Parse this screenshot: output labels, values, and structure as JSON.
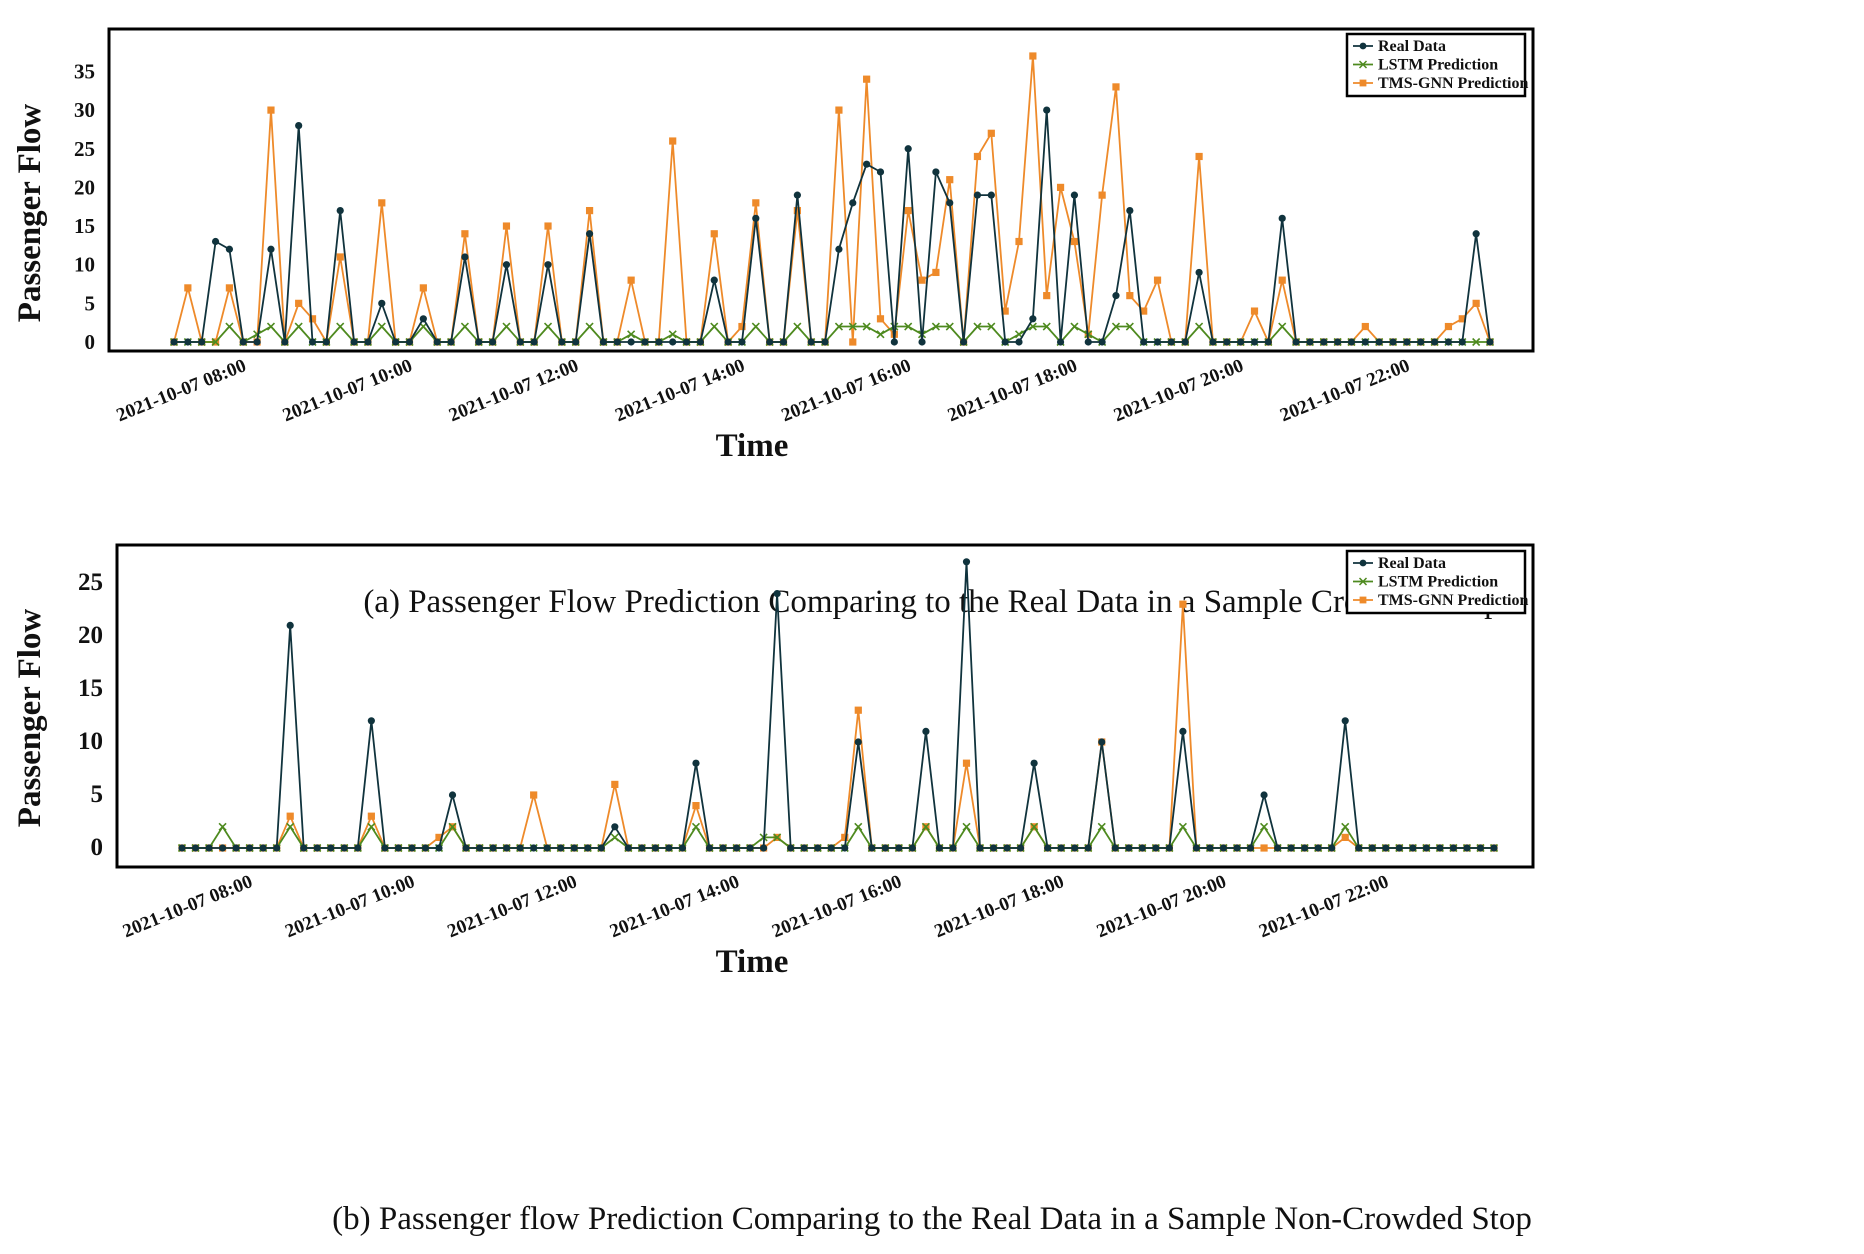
{
  "colors": {
    "real": "#10333d",
    "lstm": "#4e8a1f",
    "tms": "#ee8a2a",
    "frame": "#000000"
  },
  "x_tick_labels": [
    "2021-10-07 08:00",
    "2021-10-07 10:00",
    "2021-10-07 12:00",
    "2021-10-07 14:00",
    "2021-10-07 16:00",
    "2021-10-07 18:00",
    "2021-10-07 20:00",
    "2021-10-07 22:00"
  ],
  "chart_data": [
    {
      "type": "line",
      "caption": "(a) Passenger Flow Prediction Comparing to the Real Data in a Sample Crowded Stop",
      "xlabel": "Time",
      "ylabel": "Passenger Flow",
      "yticks": [
        0,
        5,
        10,
        15,
        20,
        25,
        30,
        35
      ],
      "ylim": [
        -1,
        38
      ],
      "x_unit": "10-minute intervals",
      "x_start": "2021-10-07 07:10",
      "legend": [
        "Real Data",
        "LSTM Prediction",
        "TMS-GNN Prediction"
      ],
      "legend_position": "top-right",
      "series": [
        {
          "name": "Real Data",
          "marker": "circle",
          "values": [
            0,
            0,
            0,
            13,
            12,
            0,
            0,
            12,
            0,
            28,
            0,
            0,
            17,
            0,
            0,
            5,
            0,
            0,
            3,
            0,
            0,
            11,
            0,
            0,
            10,
            0,
            0,
            10,
            0,
            0,
            14,
            0,
            0,
            0,
            0,
            0,
            0,
            0,
            0,
            8,
            0,
            0,
            16,
            0,
            0,
            19,
            0,
            0,
            12,
            18,
            23,
            22,
            0,
            25,
            0,
            22,
            18,
            0,
            19,
            19,
            0,
            0,
            3,
            30,
            0,
            19,
            0,
            0,
            6,
            17,
            0,
            0,
            0,
            0,
            9,
            0,
            0,
            0,
            0,
            0,
            16,
            0,
            0,
            0,
            0,
            0,
            0,
            0,
            0,
            0,
            0,
            0,
            0,
            0,
            14,
            0
          ]
        },
        {
          "name": "LSTM Prediction",
          "marker": "x",
          "values": [
            0,
            0,
            0,
            0,
            2,
            0,
            1,
            2,
            0,
            2,
            0,
            0,
            2,
            0,
            0,
            2,
            0,
            0,
            2,
            0,
            0,
            2,
            0,
            0,
            2,
            0,
            0,
            2,
            0,
            0,
            2,
            0,
            0,
            1,
            0,
            0,
            1,
            0,
            0,
            2,
            0,
            0,
            2,
            0,
            0,
            2,
            0,
            0,
            2,
            2,
            2,
            1,
            2,
            2,
            1,
            2,
            2,
            0,
            2,
            2,
            0,
            1,
            2,
            2,
            0,
            2,
            1,
            0,
            2,
            2,
            0,
            0,
            0,
            0,
            2,
            0,
            0,
            0,
            0,
            0,
            2,
            0,
            0,
            0,
            0,
            0,
            0,
            0,
            0,
            0,
            0,
            0,
            0,
            0,
            0,
            0
          ]
        },
        {
          "name": "TMS-GNN Prediction",
          "marker": "square",
          "values": [
            0,
            7,
            0,
            0,
            7,
            0,
            0,
            30,
            0,
            5,
            3,
            0,
            11,
            0,
            0,
            18,
            0,
            0,
            7,
            0,
            0,
            14,
            0,
            0,
            15,
            0,
            0,
            15,
            0,
            0,
            17,
            0,
            0,
            8,
            0,
            0,
            26,
            0,
            0,
            14,
            0,
            2,
            18,
            0,
            0,
            17,
            0,
            0,
            30,
            0,
            34,
            3,
            1,
            17,
            8,
            9,
            21,
            0,
            24,
            27,
            4,
            13,
            37,
            6,
            20,
            13,
            1,
            19,
            33,
            6,
            4,
            8,
            0,
            0,
            24,
            0,
            0,
            0,
            4,
            0,
            8,
            0,
            0,
            0,
            0,
            0,
            2,
            0,
            0,
            0,
            0,
            0,
            2,
            3,
            5,
            0
          ]
        }
      ]
    },
    {
      "type": "line",
      "caption": "(b) Passenger flow Prediction Comparing to the Real Data in a Sample Non-Crowded Stop",
      "xlabel": "Time",
      "ylabel": "Passenger Flow",
      "yticks": [
        0,
        5,
        10,
        15,
        20,
        25
      ],
      "ylim": [
        -1.5,
        28
      ],
      "x_unit": "10-minute intervals",
      "x_start": "2021-10-07 07:10",
      "legend": [
        "Real Data",
        "LSTM Prediction",
        "TMS-GNN Prediction"
      ],
      "legend_position": "top-right",
      "series": [
        {
          "name": "Real Data",
          "marker": "circle",
          "values": [
            0,
            0,
            0,
            0,
            0,
            0,
            0,
            0,
            21,
            0,
            0,
            0,
            0,
            0,
            12,
            0,
            0,
            0,
            0,
            0,
            5,
            0,
            0,
            0,
            0,
            0,
            0,
            0,
            0,
            0,
            0,
            0,
            2,
            0,
            0,
            0,
            0,
            0,
            8,
            0,
            0,
            0,
            0,
            0,
            24,
            0,
            0,
            0,
            0,
            0,
            10,
            0,
            0,
            0,
            0,
            11,
            0,
            0,
            27,
            0,
            0,
            0,
            0,
            8,
            0,
            0,
            0,
            0,
            10,
            0,
            0,
            0,
            0,
            0,
            11,
            0,
            0,
            0,
            0,
            0,
            5,
            0,
            0,
            0,
            0,
            0,
            12,
            0,
            0,
            0,
            0,
            0,
            0,
            0,
            0,
            0,
            0,
            0
          ]
        },
        {
          "name": "LSTM Prediction",
          "marker": "x",
          "values": [
            0,
            0,
            0,
            2,
            0,
            0,
            0,
            0,
            2,
            0,
            0,
            0,
            0,
            0,
            2,
            0,
            0,
            0,
            0,
            0,
            2,
            0,
            0,
            0,
            0,
            0,
            0,
            0,
            0,
            0,
            0,
            0,
            1,
            0,
            0,
            0,
            0,
            0,
            2,
            0,
            0,
            0,
            0,
            1,
            1,
            0,
            0,
            0,
            0,
            0,
            2,
            0,
            0,
            0,
            0,
            2,
            0,
            0,
            2,
            0,
            0,
            0,
            0,
            2,
            0,
            0,
            0,
            0,
            2,
            0,
            0,
            0,
            0,
            0,
            2,
            0,
            0,
            0,
            0,
            0,
            2,
            0,
            0,
            0,
            0,
            0,
            2,
            0,
            0,
            0,
            0,
            0,
            0,
            0,
            0,
            0,
            0,
            0
          ]
        },
        {
          "name": "TMS-GNN Prediction",
          "marker": "square",
          "values": [
            0,
            0,
            0,
            0,
            0,
            0,
            0,
            0,
            3,
            0,
            0,
            0,
            0,
            0,
            3,
            0,
            0,
            0,
            0,
            1,
            2,
            0,
            0,
            0,
            0,
            0,
            5,
            0,
            0,
            0,
            0,
            0,
            6,
            0,
            0,
            0,
            0,
            0,
            4,
            0,
            0,
            0,
            0,
            0,
            1,
            0,
            0,
            0,
            0,
            1,
            13,
            0,
            0,
            0,
            0,
            2,
            0,
            0,
            8,
            0,
            0,
            0,
            0,
            2,
            0,
            0,
            0,
            0,
            10,
            0,
            0,
            0,
            0,
            0,
            23,
            0,
            0,
            0,
            0,
            0,
            0,
            0,
            0,
            0,
            0,
            0,
            1,
            0,
            0,
            0,
            0,
            0,
            0,
            0,
            0,
            0,
            0,
            0
          ]
        }
      ]
    }
  ]
}
